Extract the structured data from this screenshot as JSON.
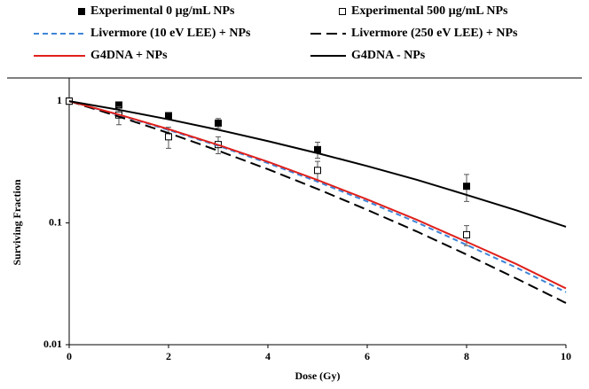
{
  "chart_data": {
    "type": "line",
    "xlabel": "Dose (Gy)",
    "ylabel": "Surviving Fraction",
    "xlim": [
      0,
      10
    ],
    "xticks": [
      0,
      2,
      4,
      6,
      8,
      10
    ],
    "ylim": [
      0.01,
      1.55
    ],
    "yticks": [
      0.01,
      0.1,
      1
    ],
    "yscale": "log",
    "series": [
      {
        "name": "Experimental 0 µg/mL NPs",
        "color": "#000000",
        "style": "filled-square",
        "x": [
          0,
          1,
          2,
          3,
          5,
          8
        ],
        "values": [
          1,
          0.93,
          0.76,
          0.66,
          0.4,
          0.2
        ],
        "errors": [
          0.05,
          0.05,
          0.03,
          0.06,
          0.06,
          0.05
        ]
      },
      {
        "name": "Experimental 500 µg/mL NPs",
        "color": "#000000",
        "style": "open-square",
        "x": [
          0,
          1,
          2,
          3,
          5,
          8
        ],
        "values": [
          1,
          0.77,
          0.51,
          0.44,
          0.27,
          0.08
        ],
        "errors": [
          0.03,
          0.13,
          0.1,
          0.07,
          0.05,
          0.015
        ]
      },
      {
        "name": "Livermore (10 eV LEE) + NPs",
        "color": "#3d85d8",
        "style": "dash",
        "x": [
          0,
          1,
          2,
          3,
          4,
          5,
          6,
          7,
          8,
          9,
          10
        ],
        "values": [
          1,
          0.77,
          0.58,
          0.43,
          0.31,
          0.218,
          0.15,
          0.101,
          0.066,
          0.043,
          0.027
        ]
      },
      {
        "name": "Livermore (250 eV LEE) + NPs",
        "color": "#000000",
        "style": "longdash",
        "x": [
          0,
          1,
          2,
          3,
          4,
          5,
          6,
          7,
          8,
          9,
          10
        ],
        "values": [
          1,
          0.747,
          0.547,
          0.392,
          0.276,
          0.19,
          0.128,
          0.085,
          0.055,
          0.035,
          0.022
        ]
      },
      {
        "name": "G4DNA + NPs",
        "color": "#e0201c",
        "style": "solid",
        "x": [
          0,
          1,
          2,
          3,
          4,
          5,
          6,
          7,
          8,
          9,
          10
        ],
        "values": [
          1,
          0.776,
          0.589,
          0.437,
          0.318,
          0.225,
          0.156,
          0.106,
          0.07,
          0.046,
          0.029
        ]
      },
      {
        "name": "G4DNA  - NPs",
        "color": "#000000",
        "style": "solid",
        "x": [
          0,
          1,
          2,
          3,
          4,
          5,
          6,
          7,
          8,
          9,
          10
        ],
        "values": [
          1,
          0.849,
          0.709,
          0.582,
          0.47,
          0.374,
          0.293,
          0.226,
          0.17,
          0.127,
          0.093
        ]
      }
    ]
  }
}
